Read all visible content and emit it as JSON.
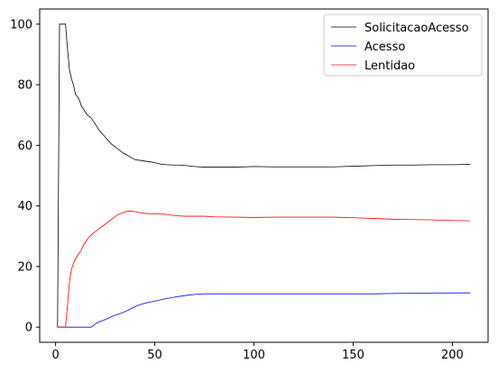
{
  "chart_data": {
    "type": "line",
    "title": "",
    "xlabel": "",
    "ylabel": "",
    "xlim": [
      -8,
      218
    ],
    "ylim": [
      -5,
      105
    ],
    "xticks": [
      0,
      50,
      100,
      150,
      200
    ],
    "yticks": [
      0,
      20,
      40,
      60,
      80,
      100
    ],
    "grid": false,
    "legend_position": "top-right",
    "series": [
      {
        "name": "SolicitacaoAcesso",
        "color": "#000000",
        "x": [
          1,
          2,
          3,
          4,
          5,
          6,
          7,
          8,
          9,
          10,
          11,
          12,
          13,
          14,
          15,
          16,
          17,
          18,
          19,
          20,
          22,
          24,
          26,
          28,
          30,
          32,
          34,
          36,
          38,
          40,
          43,
          46,
          50,
          53,
          56,
          60,
          63,
          66,
          70,
          75,
          80,
          90,
          100,
          110,
          120,
          130,
          140,
          150,
          160,
          170,
          180,
          190,
          200,
          209
        ],
        "y": [
          0,
          100,
          100,
          100,
          100,
          92,
          85,
          82,
          80,
          77,
          76,
          75,
          73,
          72,
          71,
          70,
          69.5,
          69,
          68,
          67,
          65,
          63.5,
          62,
          60.5,
          59.5,
          58.5,
          57.5,
          56.8,
          56,
          55.3,
          55,
          54.7,
          54.3,
          53.8,
          53.6,
          53.5,
          53.5,
          53.3,
          53,
          52.8,
          52.8,
          52.8,
          53,
          52.9,
          52.9,
          52.9,
          52.9,
          53.1,
          53.3,
          53.5,
          53.5,
          53.6,
          53.6,
          53.7
        ]
      },
      {
        "name": "Acesso",
        "color": "#0000ff",
        "x": [
          1,
          5,
          10,
          15,
          18,
          20,
          22,
          24,
          26,
          28,
          30,
          33,
          36,
          39,
          42,
          45,
          50,
          55,
          60,
          65,
          70,
          75,
          80,
          100,
          120,
          140,
          160,
          180,
          200,
          209
        ],
        "y": [
          0,
          0,
          0,
          0,
          0,
          1,
          1.8,
          2.2,
          2.8,
          3.4,
          3.9,
          4.6,
          5.4,
          6.4,
          7.3,
          7.9,
          8.6,
          9.3,
          9.9,
          10.4,
          10.8,
          11,
          11,
          11,
          11,
          11,
          11,
          11.2,
          11.3,
          11.3
        ]
      },
      {
        "name": "Lentidao",
        "color": "#ff0000",
        "x": [
          1,
          4,
          5,
          6,
          7,
          8,
          9,
          10,
          11,
          12,
          13,
          14,
          15,
          16,
          18,
          20,
          22,
          24,
          26,
          28,
          30,
          32,
          34,
          36,
          38,
          40,
          43,
          46,
          50,
          55,
          60,
          65,
          70,
          75,
          80,
          90,
          100,
          110,
          120,
          130,
          140,
          150,
          160,
          170,
          180,
          190,
          200,
          209
        ],
        "y": [
          0,
          0,
          0,
          7,
          15,
          19,
          21,
          22.5,
          23.5,
          24.5,
          25.5,
          27,
          28,
          29,
          30.5,
          31.5,
          32.5,
          33.5,
          34.5,
          35.5,
          36.5,
          37.3,
          37.8,
          38.2,
          38.3,
          38.1,
          37.7,
          37.5,
          37.4,
          37.3,
          36.8,
          36.6,
          36.6,
          36.6,
          36.4,
          36.3,
          36.2,
          36.3,
          36.3,
          36.3,
          36.3,
          36.1,
          35.9,
          35.6,
          35.5,
          35.4,
          35.2,
          35.1
        ]
      }
    ]
  }
}
